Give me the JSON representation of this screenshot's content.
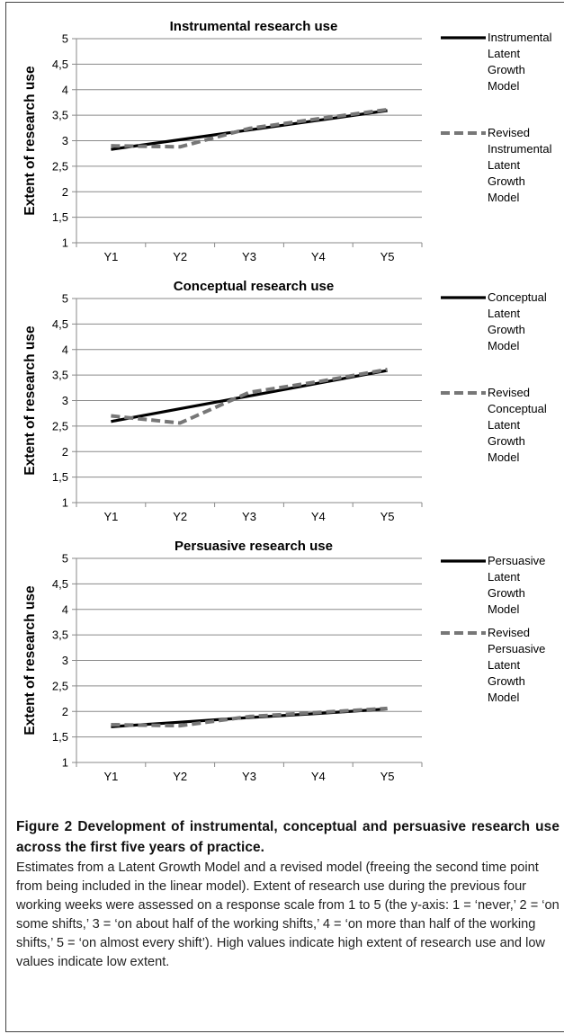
{
  "chart_data": [
    {
      "type": "line",
      "title": "Instrumental research use",
      "ylabel": "Extent of research use",
      "xlabel": "",
      "categories": [
        "Y1",
        "Y2",
        "Y3",
        "Y4",
        "Y5"
      ],
      "ylim": [
        1,
        5
      ],
      "yticks": [
        "1",
        "1,5",
        "2",
        "2,5",
        "3",
        "3,5",
        "4",
        "4,5",
        "5"
      ],
      "grid": true,
      "legend_position": "right",
      "series": [
        {
          "name": "Instrumental Latent Growth Model",
          "legend_lines": [
            "Instrumental",
            "Latent",
            "Growth",
            "Model"
          ],
          "style": "solid",
          "color": "#000000",
          "values": [
            2.83,
            3.02,
            3.21,
            3.4,
            3.59
          ]
        },
        {
          "name": "Revised Instrumental Latent Growth Model",
          "legend_lines": [
            "Revised",
            "Instrumental",
            "Latent",
            "Growth",
            "Model"
          ],
          "style": "dashed",
          "color": "#777777",
          "values": [
            2.9,
            2.88,
            3.24,
            3.43,
            3.61
          ]
        }
      ]
    },
    {
      "type": "line",
      "title": "Conceptual research use",
      "ylabel": "Extent of research use",
      "xlabel": "",
      "categories": [
        "Y1",
        "Y2",
        "Y3",
        "Y4",
        "Y5"
      ],
      "ylim": [
        1,
        5
      ],
      "yticks": [
        "1",
        "1,5",
        "2",
        "2,5",
        "3",
        "3,5",
        "4",
        "4,5",
        "5"
      ],
      "grid": true,
      "legend_position": "right",
      "series": [
        {
          "name": "Conceptual Latent Growth Model",
          "legend_lines": [
            "Conceptual",
            "Latent",
            "Growth",
            "Model"
          ],
          "style": "solid",
          "color": "#000000",
          "values": [
            2.59,
            2.84,
            3.09,
            3.34,
            3.59
          ]
        },
        {
          "name": "Revised Conceptual Latent Growth Model",
          "legend_lines": [
            "Revised",
            "Conceptual",
            "Latent",
            "Growth",
            "Model"
          ],
          "style": "dashed",
          "color": "#777777",
          "values": [
            2.7,
            2.56,
            3.16,
            3.37,
            3.61
          ]
        }
      ]
    },
    {
      "type": "line",
      "title": "Persuasive research use",
      "ylabel": "Extent of research use",
      "xlabel": "",
      "categories": [
        "Y1",
        "Y2",
        "Y3",
        "Y4",
        "Y5"
      ],
      "ylim": [
        1,
        5
      ],
      "yticks": [
        "1",
        "1,5",
        "2",
        "2,5",
        "3",
        "3,5",
        "4",
        "4,5",
        "5"
      ],
      "grid": true,
      "legend_position": "right",
      "series": [
        {
          "name": "Persuasive Latent Growth Model",
          "legend_lines": [
            "Persuasive",
            "Latent",
            "Growth",
            "Model"
          ],
          "style": "solid",
          "color": "#000000",
          "values": [
            1.7,
            1.79,
            1.88,
            1.96,
            2.05
          ]
        },
        {
          "name": "Revised Persuasive Latent Growth Model",
          "legend_lines": [
            "Revised",
            "Persuasive",
            "Latent",
            "Growth",
            "Model"
          ],
          "style": "dashed",
          "color": "#777777",
          "values": [
            1.74,
            1.72,
            1.9,
            1.98,
            2.06
          ]
        }
      ]
    }
  ],
  "caption": {
    "figure_label": "Figure 2",
    "title": "Development of instrumental, conceptual and persuasive research use across the first five years of practice",
    "title_end": ".",
    "body": "Estimates from a Latent Growth Model and a revised model (freeing the second time point from being included in the linear model). Extent of research use during the previous four working weeks were assessed on a response scale from 1 to 5 (the y-axis: 1 = ‘never,’ 2 = ‘on some shifts,’ 3 = ‘on about half of the working shifts,’ 4 = ‘on more than half of the working shifts,’ 5 = ‘on almost every shift’). High values indicate high extent of research use and low values indicate low extent."
  }
}
